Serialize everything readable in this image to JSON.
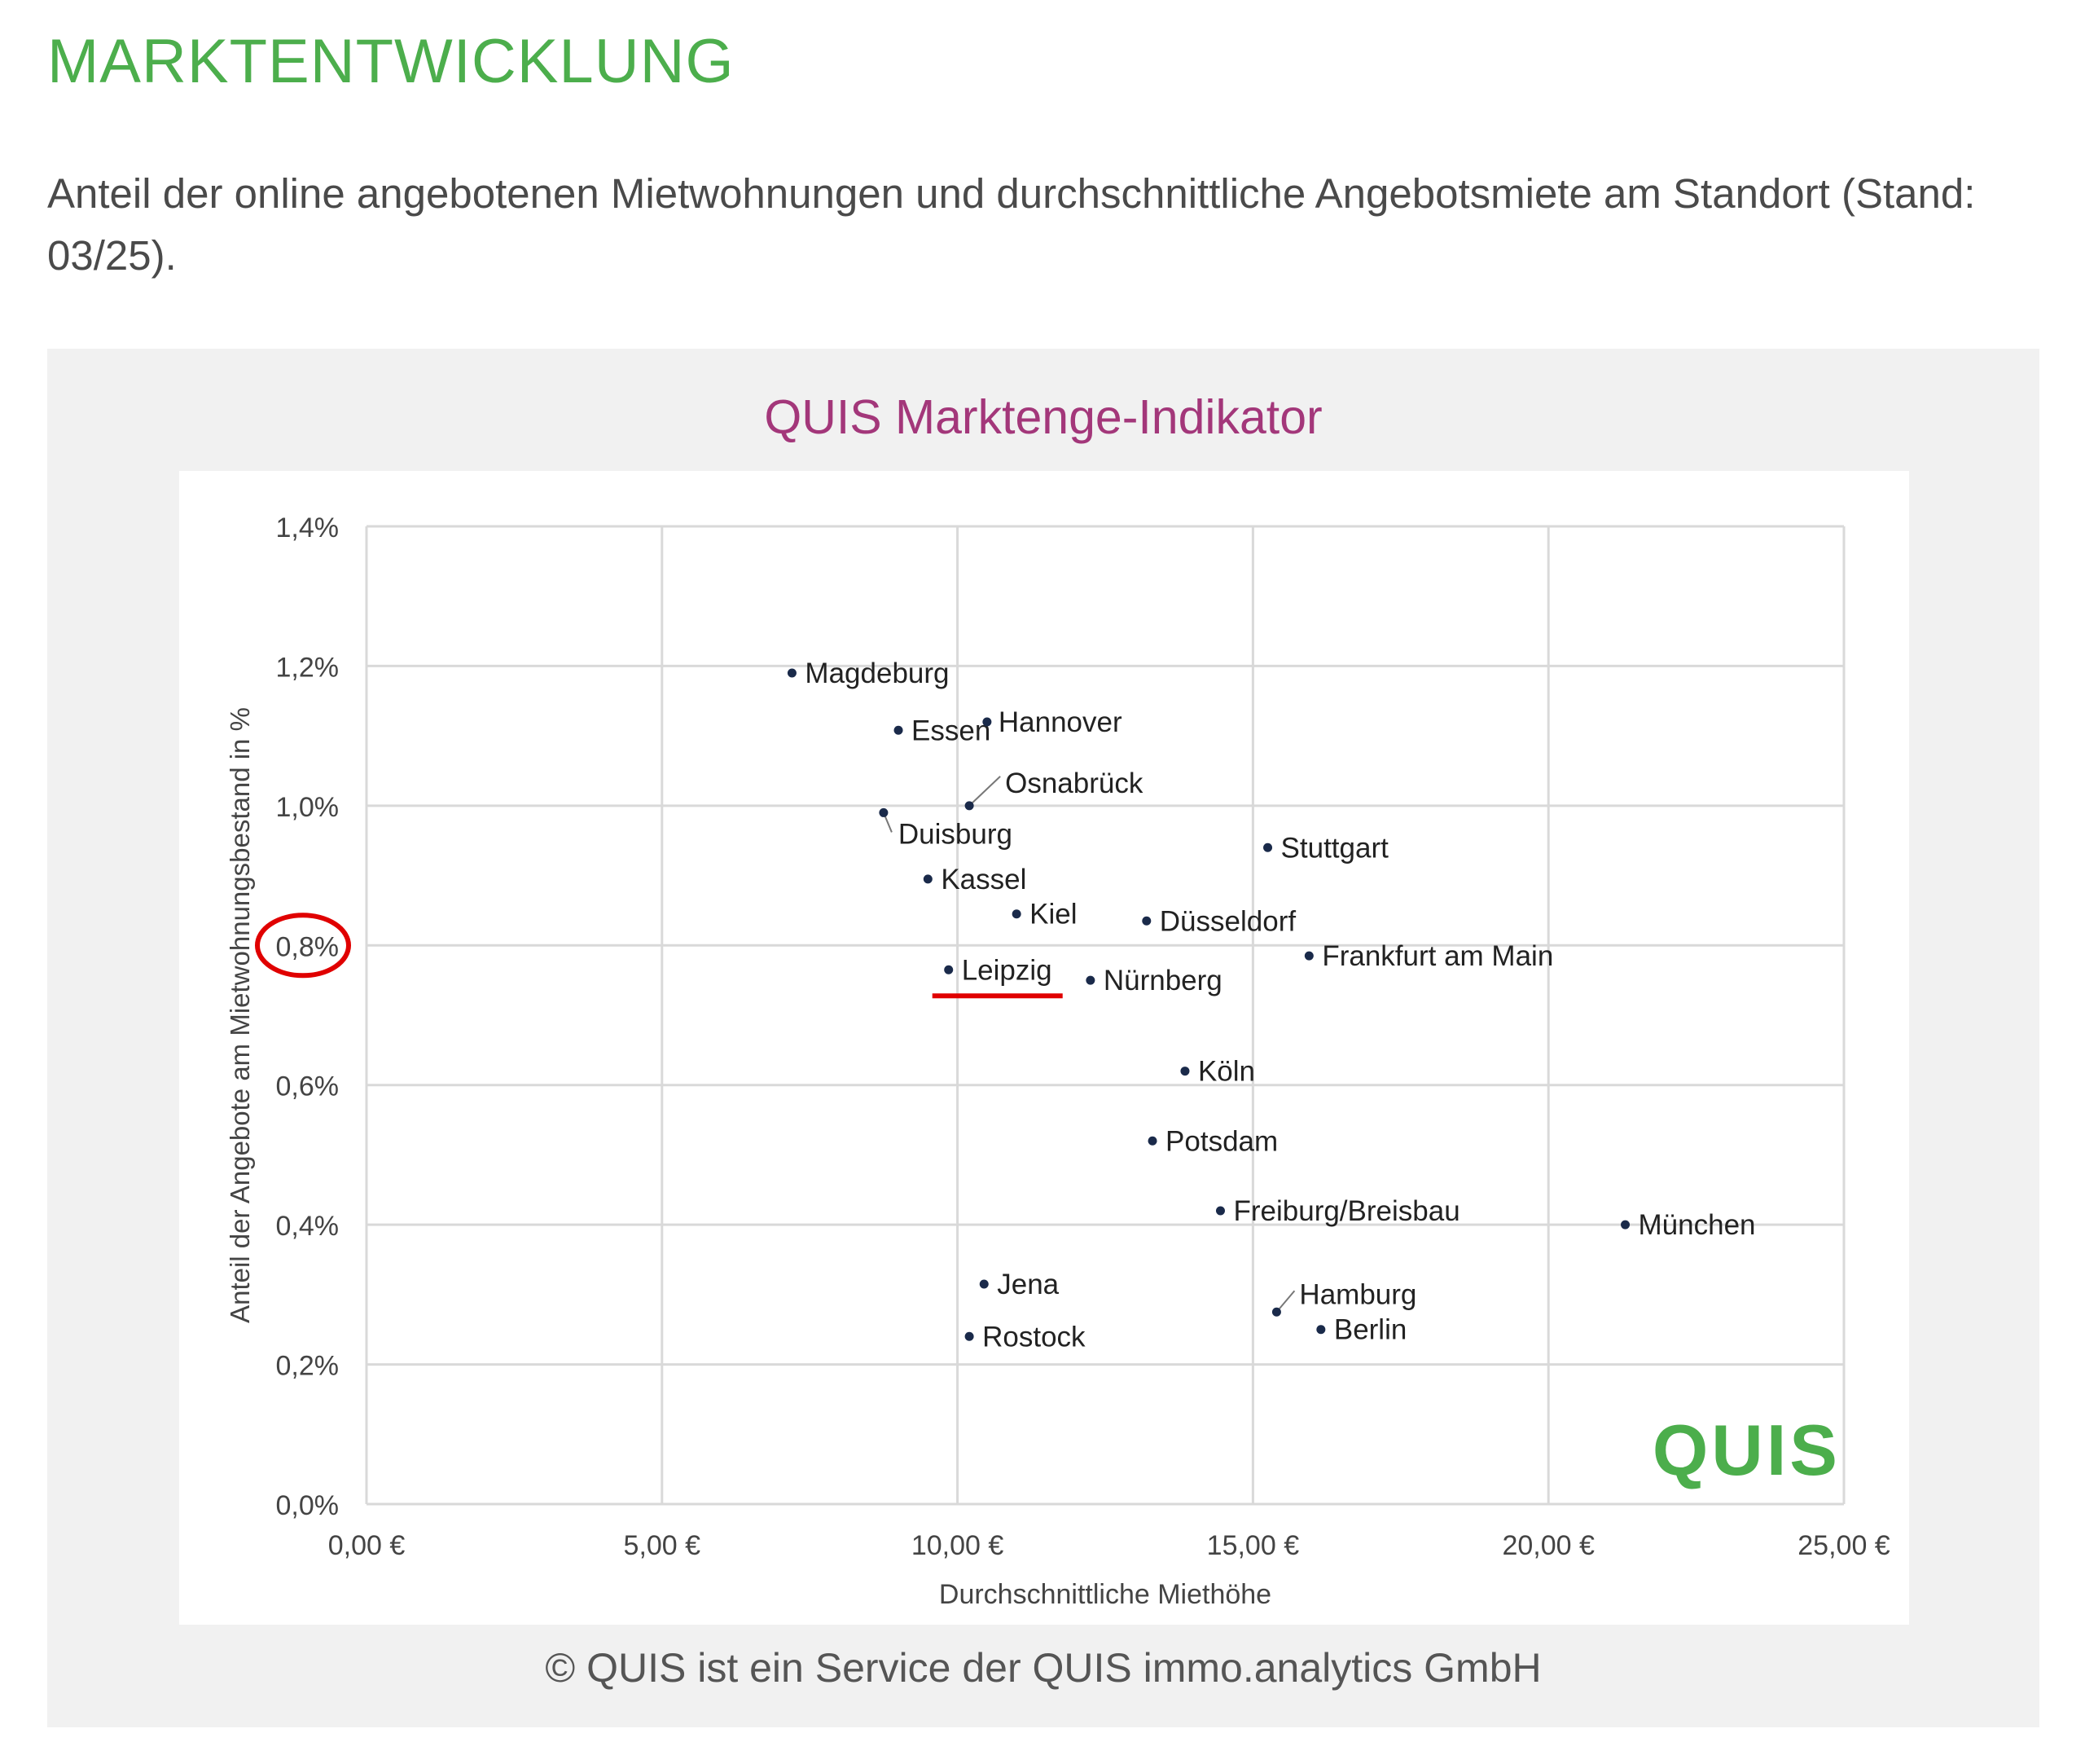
{
  "page": {
    "heading": "MARKTENTWICKLUNG",
    "intro": "Anteil der online angebotenen Mietwohnungen und durchschnittliche Angebotsmiete am Standort (Stand: 03/25).",
    "footer": "© QUIS ist ein Service der QUIS immo.analytics GmbH",
    "logo_text": "QUIS"
  },
  "colors": {
    "heading": "#4cae4c",
    "chart_title": "#a3377a",
    "logo": "#4cae4c",
    "highlight": "#e00000",
    "point": "#1a2a4a",
    "grid": "#d9d9d9",
    "panel_bg": "#f1f1f1"
  },
  "chart_data": {
    "type": "scatter",
    "title": "QUIS Marktenge-Indikator",
    "xlabel": "Durchschnittliche Miethöhe",
    "ylabel": "Anteil der Angebote am Mietwohnungsbestand in %",
    "xlim": [
      0,
      25
    ],
    "ylim": [
      0,
      1.4
    ],
    "x_ticks": [
      0,
      5,
      10,
      15,
      20,
      25
    ],
    "x_tick_labels": [
      "0,00 €",
      "5,00 €",
      "10,00 €",
      "15,00 €",
      "20,00 €",
      "25,00 €"
    ],
    "y_ticks": [
      0,
      0.2,
      0.4,
      0.6,
      0.8,
      1.0,
      1.2,
      1.4
    ],
    "y_tick_labels": [
      "0,0%",
      "0,2%",
      "0,4%",
      "0,6%",
      "0,8%",
      "1,0%",
      "1,2%",
      "1,4%"
    ],
    "grid": true,
    "highlighted_y_tick": "0,8%",
    "highlighted_point": "Leipzig",
    "points": [
      {
        "label": "Magdeburg",
        "x": 7.2,
        "y": 1.19
      },
      {
        "label": "Essen",
        "x": 9.0,
        "y": 1.108
      },
      {
        "label": "Hannover",
        "x": 10.5,
        "y": 1.12
      },
      {
        "label": "Osnabrück",
        "x": 10.2,
        "y": 1.0
      },
      {
        "label": "Duisburg",
        "x": 8.75,
        "y": 0.99
      },
      {
        "label": "Kassel",
        "x": 9.5,
        "y": 0.895
      },
      {
        "label": "Kiel",
        "x": 11.0,
        "y": 0.845
      },
      {
        "label": "Düsseldorf",
        "x": 13.2,
        "y": 0.835
      },
      {
        "label": "Stuttgart",
        "x": 15.25,
        "y": 0.94
      },
      {
        "label": "Frankfurt am Main",
        "x": 15.95,
        "y": 0.785
      },
      {
        "label": "Leipzig",
        "x": 9.85,
        "y": 0.765
      },
      {
        "label": "Nürnberg",
        "x": 12.25,
        "y": 0.75
      },
      {
        "label": "Köln",
        "x": 13.85,
        "y": 0.62
      },
      {
        "label": "Potsdam",
        "x": 13.3,
        "y": 0.52
      },
      {
        "label": "Freiburg/Breisbau",
        "x": 14.45,
        "y": 0.42
      },
      {
        "label": "München",
        "x": 21.3,
        "y": 0.4
      },
      {
        "label": "Jena",
        "x": 10.45,
        "y": 0.315
      },
      {
        "label": "Hamburg",
        "x": 15.4,
        "y": 0.275
      },
      {
        "label": "Berlin",
        "x": 16.15,
        "y": 0.25
      },
      {
        "label": "Rostock",
        "x": 10.2,
        "y": 0.24
      }
    ]
  }
}
